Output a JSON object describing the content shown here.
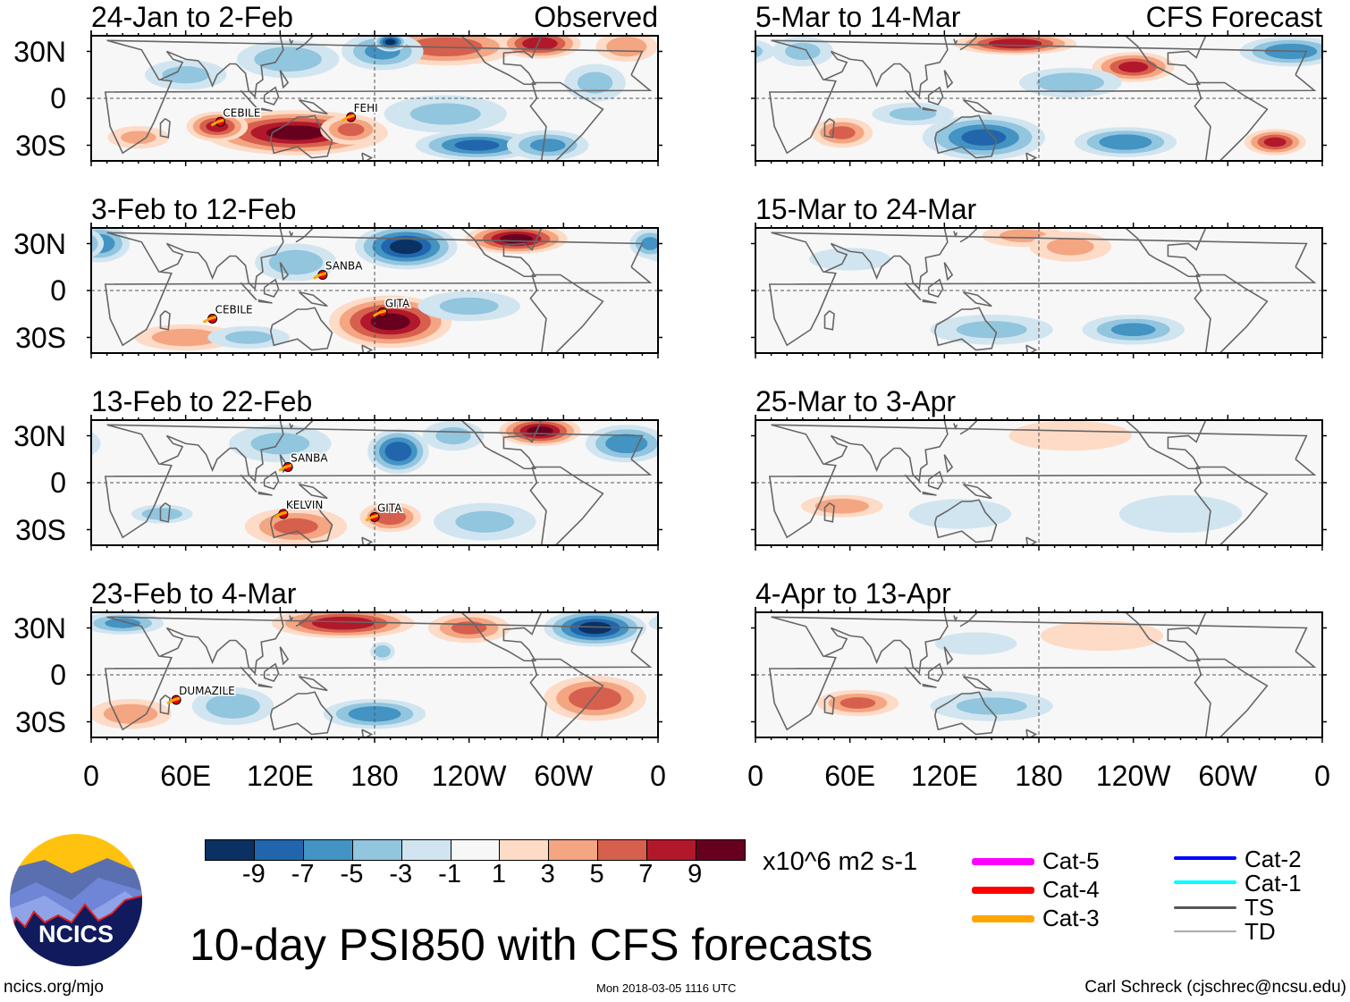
{
  "figure_title": "10-day PSI850 with CFS forecasts",
  "units": "x10^6 m2 s-1",
  "site": "ncics.org/mjo",
  "timestamp": "Mon 2018-03-05 1116 UTC",
  "author": "Carl Schreck (cjschrec@ncsu.edu)",
  "logo_text": "NCICS",
  "column_labels": {
    "observed": "Observed",
    "forecast": "CFS Forecast"
  },
  "lat_labels": [
    "30N",
    "0",
    "30S"
  ],
  "lon_labels": [
    "0",
    "60E",
    "120E",
    "180",
    "120W",
    "60W",
    "0"
  ],
  "colorbar": {
    "labels": [
      "-9",
      "-7",
      "-5",
      "-3",
      "-1",
      "1",
      "3",
      "5",
      "7",
      "9"
    ],
    "colors": [
      "#0a3162",
      "#2166ac",
      "#4393c3",
      "#92c5de",
      "#d1e5f0",
      "#f7f7f7",
      "#fddbc7",
      "#f4a582",
      "#d6604d",
      "#b2182b",
      "#67001f"
    ]
  },
  "track_legend": [
    {
      "label": "Cat-5",
      "color": "#ff00ff"
    },
    {
      "label": "Cat-4",
      "color": "#ff0000"
    },
    {
      "label": "Cat-3",
      "color": "#ffa500"
    },
    {
      "label": "Cat-2",
      "color": "#0000ff"
    },
    {
      "label": "Cat-1",
      "color": "#00ffff"
    },
    {
      "label": "TS",
      "color": "#555555"
    },
    {
      "label": "TD",
      "color": "#aaaaaa"
    }
  ],
  "panels": [
    {
      "title": "24-Jan to 2-Feb",
      "column": "observed",
      "cyclones": [
        {
          "name": "CEBILE",
          "lon": 82,
          "lat": -15
        },
        {
          "name": "FEHI",
          "lon": 165,
          "lat": -12
        }
      ],
      "anomalies": [
        [
          225,
          33,
          35,
          10,
          6
        ],
        [
          285,
          35,
          20,
          8,
          8
        ],
        [
          340,
          33,
          15,
          8,
          4
        ],
        [
          130,
          -22,
          45,
          12,
          9
        ],
        [
          80,
          -18,
          15,
          8,
          7
        ],
        [
          165,
          -20,
          15,
          8,
          5
        ],
        [
          30,
          -25,
          15,
          6,
          3
        ],
        [
          185,
          30,
          20,
          10,
          -5
        ],
        [
          190,
          36,
          8,
          5,
          -9
        ],
        [
          125,
          25,
          25,
          10,
          -4
        ],
        [
          245,
          -30,
          30,
          8,
          -7
        ],
        [
          290,
          -30,
          20,
          8,
          -5
        ],
        [
          225,
          -10,
          30,
          10,
          -3
        ],
        [
          320,
          10,
          15,
          10,
          -3
        ],
        [
          60,
          15,
          20,
          8,
          -3
        ]
      ]
    },
    {
      "title": "3-Feb to 12-Feb",
      "column": "observed",
      "cyclones": [
        {
          "name": "SANBA",
          "lon": 147,
          "lat": 10
        },
        {
          "name": "CEBILE",
          "lon": 77,
          "lat": -18
        },
        {
          "name": "GITA",
          "lon": 185,
          "lat": -14
        }
      ],
      "anomalies": [
        [
          200,
          28,
          25,
          12,
          -9
        ],
        [
          270,
          33,
          25,
          8,
          9
        ],
        [
          5,
          30,
          15,
          10,
          -6
        ],
        [
          130,
          18,
          20,
          10,
          -4
        ],
        [
          190,
          -20,
          30,
          14,
          9
        ],
        [
          60,
          -30,
          25,
          7,
          4
        ],
        [
          355,
          30,
          10,
          8,
          -5
        ],
        [
          240,
          -10,
          25,
          8,
          -3
        ],
        [
          100,
          -30,
          20,
          6,
          -3
        ]
      ]
    },
    {
      "title": "13-Feb to 22-Feb",
      "column": "observed",
      "cyclones": [
        {
          "name": "SANBA",
          "lon": 125,
          "lat": 10
        },
        {
          "name": "KELVIN",
          "lon": 122,
          "lat": -20
        },
        {
          "name": "GITA",
          "lon": 180,
          "lat": -22
        }
      ],
      "anomalies": [
        [
          195,
          20,
          15,
          12,
          -8
        ],
        [
          285,
          33,
          20,
          8,
          9
        ],
        [
          340,
          25,
          20,
          10,
          -6
        ],
        [
          130,
          -28,
          25,
          10,
          5
        ],
        [
          190,
          -22,
          15,
          8,
          6
        ],
        [
          45,
          -20,
          15,
          5,
          -4
        ],
        [
          120,
          25,
          25,
          10,
          -3
        ],
        [
          250,
          -25,
          25,
          10,
          -3
        ],
        [
          230,
          30,
          15,
          8,
          -3
        ]
      ]
    },
    {
      "title": "23-Feb to 4-Mar",
      "column": "observed",
      "cyclones": [
        {
          "name": "DUMAZILE",
          "lon": 54,
          "lat": -16
        }
      ],
      "anomalies": [
        [
          160,
          33,
          35,
          8,
          8
        ],
        [
          320,
          30,
          25,
          10,
          -9
        ],
        [
          20,
          33,
          20,
          6,
          -5
        ],
        [
          180,
          -25,
          25,
          8,
          -6
        ],
        [
          320,
          -15,
          25,
          12,
          6
        ],
        [
          25,
          -25,
          20,
          8,
          4
        ],
        [
          90,
          -20,
          20,
          10,
          -4
        ],
        [
          240,
          30,
          20,
          8,
          5
        ],
        [
          185,
          15,
          6,
          5,
          -4
        ]
      ]
    },
    {
      "title": "5-Mar to 14-Mar",
      "column": "forecast",
      "cyclones": [],
      "anomalies": [
        [
          165,
          35,
          30,
          6,
          8
        ],
        [
          240,
          20,
          20,
          8,
          7
        ],
        [
          340,
          30,
          25,
          8,
          -6
        ],
        [
          145,
          -25,
          30,
          12,
          -7
        ],
        [
          235,
          -28,
          25,
          8,
          -6
        ],
        [
          330,
          -28,
          15,
          7,
          7
        ],
        [
          55,
          -22,
          15,
          8,
          5
        ],
        [
          200,
          10,
          25,
          8,
          -4
        ],
        [
          30,
          30,
          15,
          8,
          -3
        ],
        [
          100,
          -10,
          20,
          6,
          -3
        ]
      ]
    },
    {
      "title": "15-Mar to 24-Mar",
      "column": "forecast",
      "cyclones": [],
      "anomalies": [
        [
          170,
          35,
          20,
          6,
          3
        ],
        [
          240,
          -25,
          25,
          8,
          -5
        ],
        [
          150,
          -25,
          30,
          8,
          -3
        ],
        [
          200,
          28,
          20,
          8,
          3
        ],
        [
          60,
          20,
          20,
          6,
          -2
        ]
      ]
    },
    {
      "title": "25-Mar to 3-Apr",
      "column": "forecast",
      "cyclones": [],
      "anomalies": [
        [
          55,
          -15,
          20,
          6,
          4
        ],
        [
          200,
          30,
          30,
          8,
          2
        ],
        [
          270,
          -20,
          30,
          10,
          -2
        ],
        [
          130,
          -20,
          25,
          8,
          -2
        ]
      ]
    },
    {
      "title": "4-Apr to 13-Apr",
      "column": "forecast",
      "cyclones": [],
      "anomalies": [
        [
          65,
          -18,
          20,
          7,
          5
        ],
        [
          220,
          25,
          30,
          8,
          2
        ],
        [
          150,
          -20,
          30,
          8,
          -3
        ],
        [
          140,
          20,
          20,
          6,
          -2
        ]
      ]
    }
  ]
}
